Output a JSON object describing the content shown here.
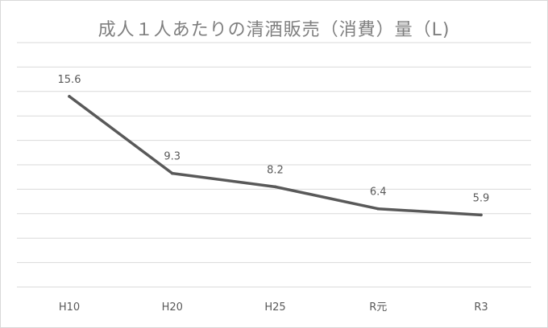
{
  "chart_data": {
    "type": "line",
    "title": "成人１人あたりの清酒販売（消費）量（L)",
    "categories": [
      "H10",
      "H20",
      "H25",
      "R元",
      "R3"
    ],
    "series": [
      {
        "values": [
          15.6,
          9.3,
          8.2,
          6.4,
          5.9
        ],
        "color": "#595959"
      }
    ],
    "data_labels": [
      "15.6",
      "9.3",
      "8.2",
      "6.4",
      "5.9"
    ],
    "ylim": [
      0,
      20
    ],
    "grid": true,
    "gridline_color": "#d9d9d9",
    "text_color": "#595959"
  }
}
